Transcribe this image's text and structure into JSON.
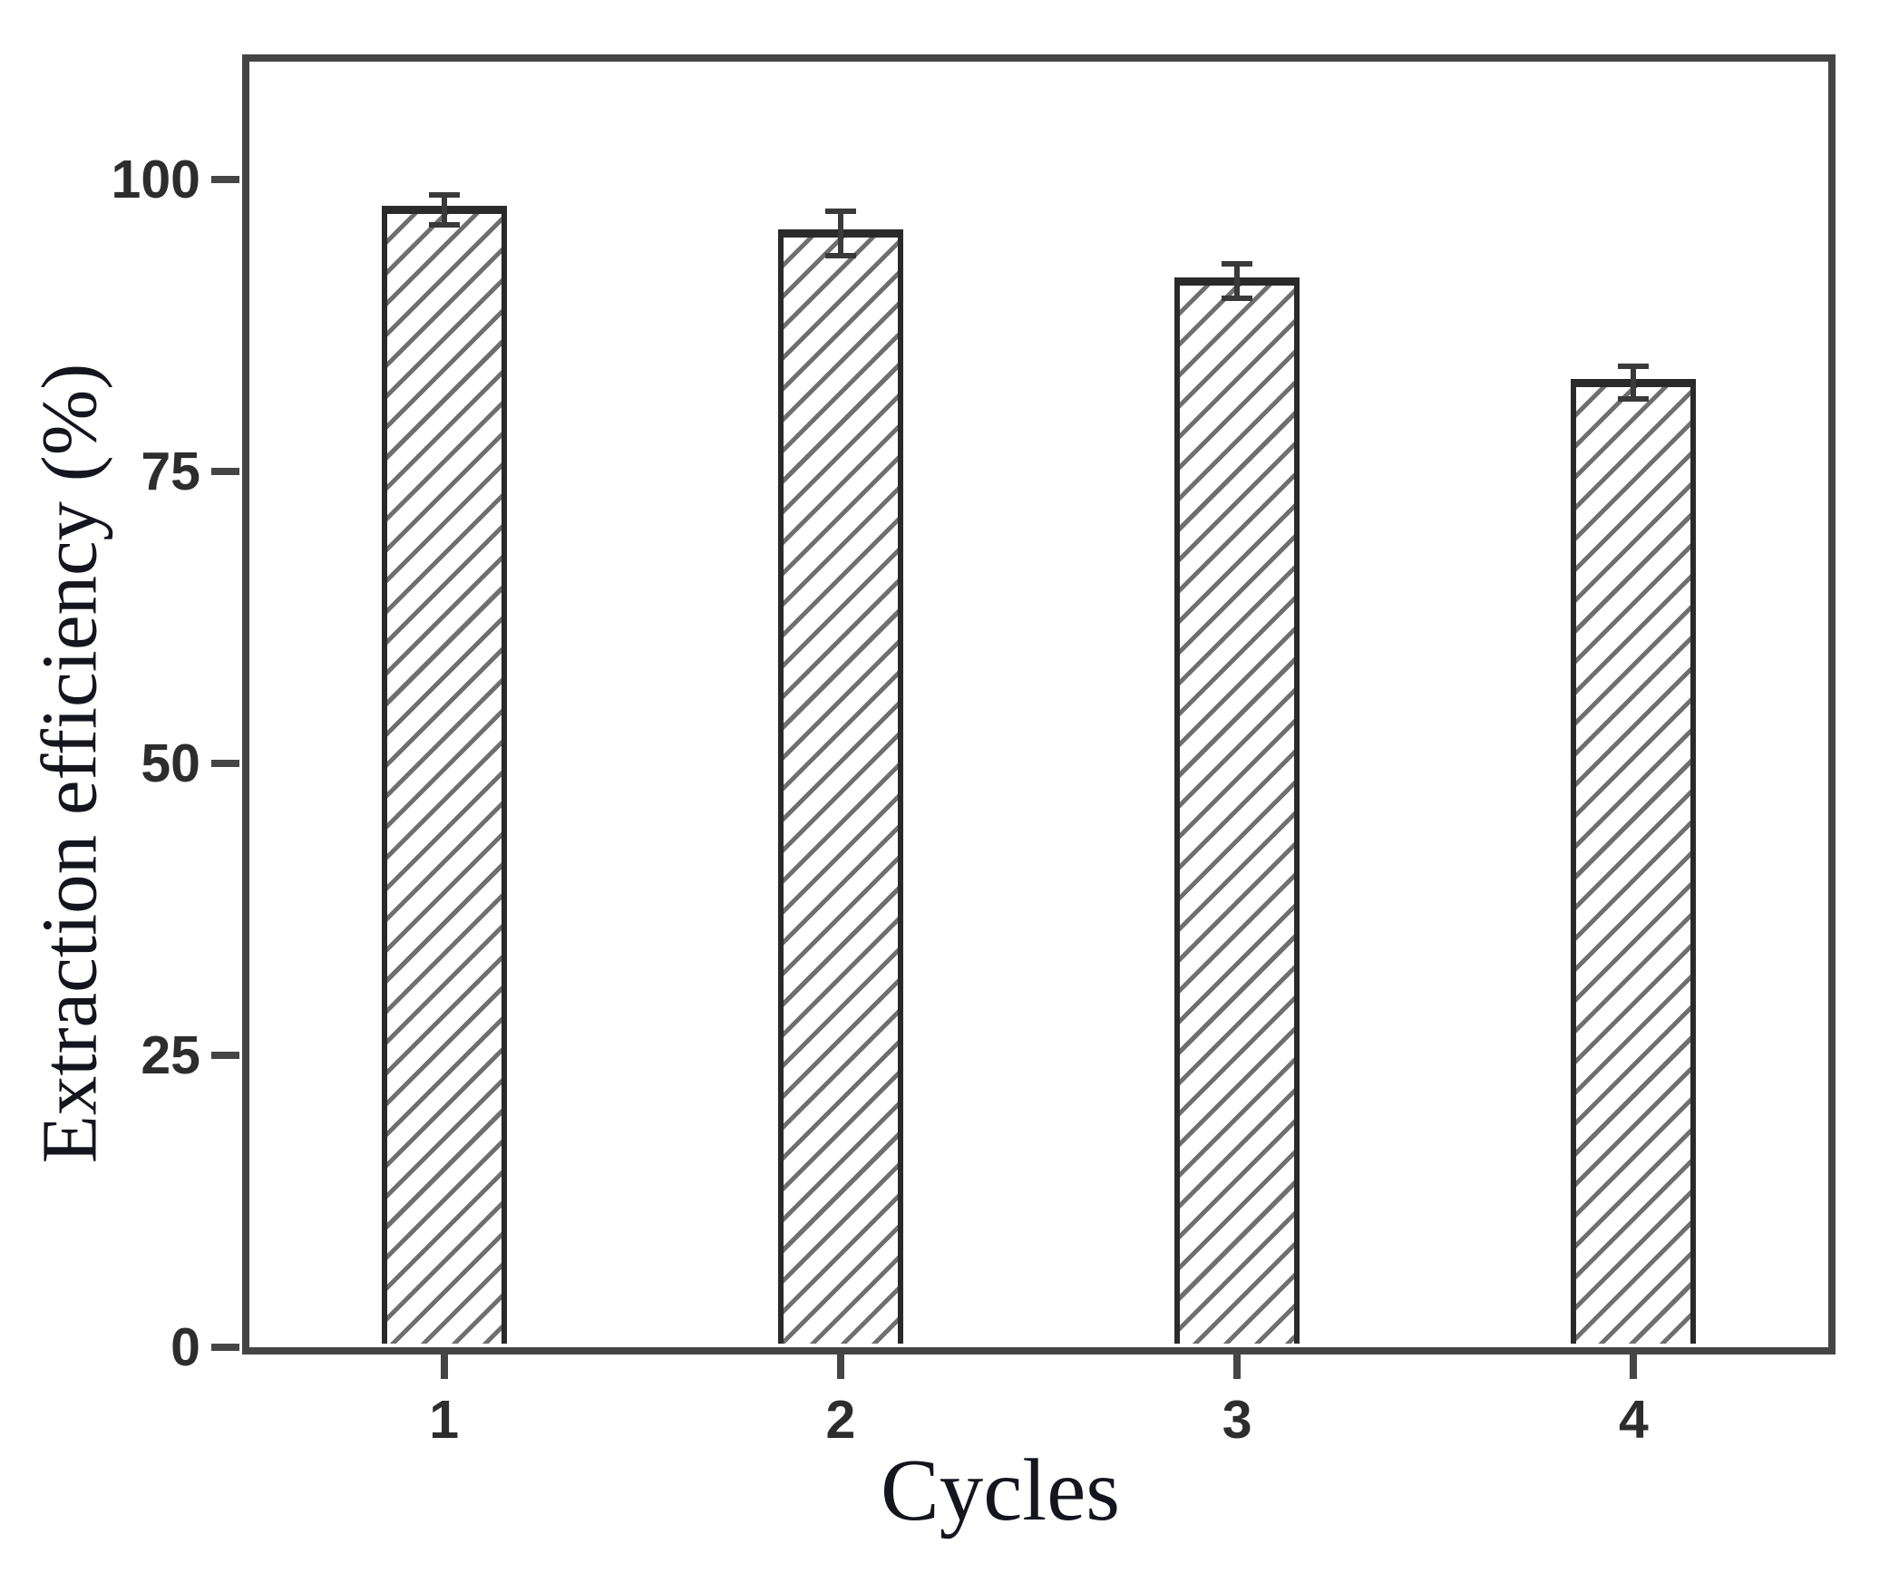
{
  "chart_data": {
    "type": "bar",
    "title": "",
    "xlabel": "Cycles",
    "ylabel": "Extraction efficiency (%)",
    "categories": [
      "1",
      "2",
      "3",
      "4"
    ],
    "series": [
      {
        "name": "Extraction efficiency",
        "values": [
          97.4,
          95.4,
          91.3,
          82.6
        ],
        "errors": [
          1.3,
          1.9,
          1.5,
          1.4
        ]
      }
    ],
    "ytick_labels": [
      "0",
      "25",
      "50",
      "75",
      "100"
    ],
    "ytick_values": [
      0,
      25,
      50,
      75,
      100
    ],
    "ylim": [
      0,
      110
    ],
    "grid": false,
    "legend": null,
    "style": {
      "bar_fill": "#ffffff",
      "bar_hatch": "forward-diagonal-lines",
      "bar_hatch_color": "#6f6f6f",
      "bar_edge_color": "#2a2a2a",
      "error_bar_color": "#3a3a3a",
      "axis_color": "#454545",
      "tick_label_color": "#2d2d2d",
      "axis_title_color": "#15151f",
      "background": "#ffffff"
    }
  }
}
